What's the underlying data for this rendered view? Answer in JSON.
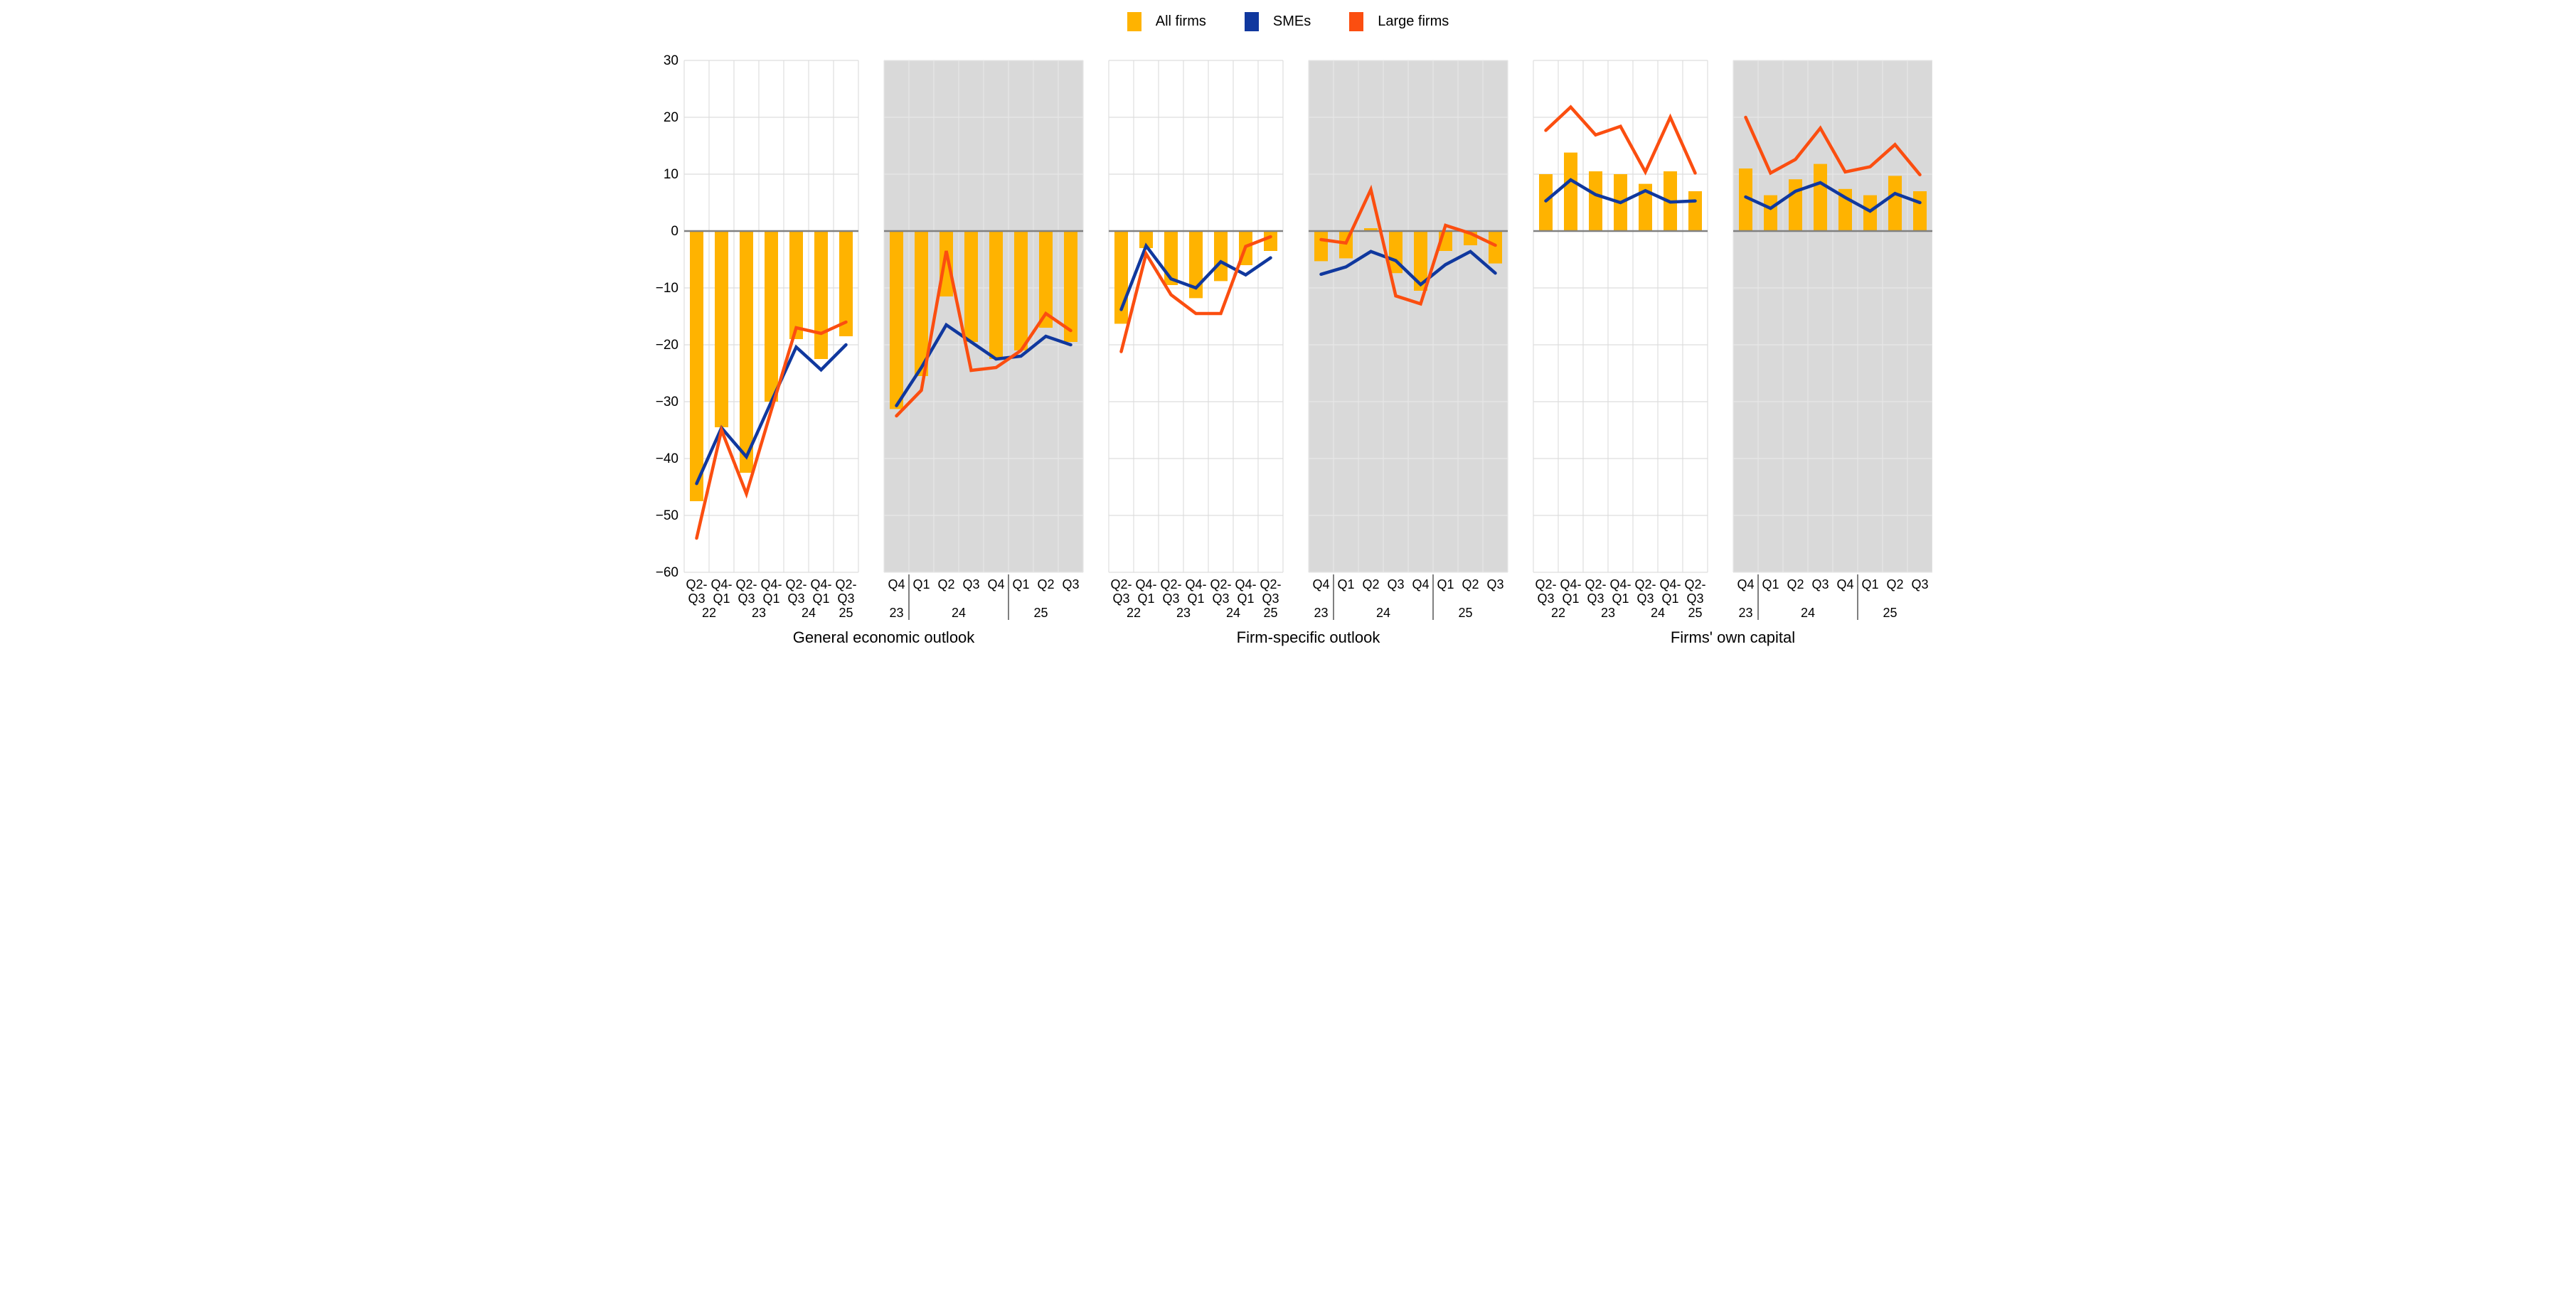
{
  "legend": [
    {
      "label": "All firms",
      "color": "#FFB300"
    },
    {
      "label": "SMEs",
      "color": "#10389E"
    },
    {
      "label": "Large firms",
      "color": "#FB4E10"
    }
  ],
  "chart_data": {
    "type": "bar+line",
    "y_axis": {
      "min": -60,
      "max": 30,
      "step": 10
    },
    "legend_position": "top-center",
    "grid": true,
    "colors": {
      "all_firms": "#FFB300",
      "smes": "#10389E",
      "large_firms": "#FB4E10",
      "gray_panel": "#D9D9D9",
      "grid_on_white": "#DEDEDE",
      "grid_on_gray": "#E7E7E7",
      "zero_line": "#808080",
      "separator": "#000000"
    },
    "groups": [
      {
        "title": "General economic outlook",
        "panels": [
          {
            "frequency": "semiannual",
            "background": "white",
            "cat_top": [
              "Q2-",
              "Q4-",
              "Q2-",
              "Q4-",
              "Q2-",
              "Q4-",
              "Q2-"
            ],
            "cat_bottom": [
              "Q3",
              "Q1",
              "Q3",
              "Q1",
              "Q3",
              "Q1",
              "Q3"
            ],
            "years": [
              {
                "label": "22",
                "slot": 1.0
              },
              {
                "label": "23",
                "slot": 3.0
              },
              {
                "label": "24",
                "slot": 5.0
              },
              {
                "label": "25",
                "slot": 6.5
              }
            ],
            "all_firms": [
              -47.5,
              -34.5,
              -42.5,
              -30,
              -19,
              -22.5,
              -18.5
            ],
            "smes": [
              -44.4,
              -34.6,
              -39.7,
              -30,
              -20.4,
              -24.4,
              -20
            ],
            "large_firms": [
              -54,
              -35,
              -46.2,
              -31.5,
              -17,
              -18,
              -16
            ]
          },
          {
            "frequency": "quarterly",
            "background": "gray",
            "cat_top": [
              "Q4",
              "Q1",
              "Q2",
              "Q3",
              "Q4",
              "Q1",
              "Q2",
              "Q3"
            ],
            "cat_bottom": null,
            "years": [
              {
                "label": "23",
                "slot": 0.5
              },
              {
                "label": "24",
                "slot": 3.0
              },
              {
                "label": "25",
                "slot": 6.3
              }
            ],
            "separators": [
              1,
              5
            ],
            "all_firms": [
              -31.3,
              -25.5,
              -11.5,
              -19.5,
              -22.5,
              -21,
              -17,
              -19.5
            ],
            "smes": [
              -30.7,
              -24,
              -16.5,
              -19.5,
              -22.5,
              -22,
              -18.5,
              -20
            ],
            "large_firms": [
              -32.5,
              -28,
              -3.5,
              -24.5,
              -24,
              -21,
              -14.5,
              -17.5
            ]
          }
        ]
      },
      {
        "title": "Firm-specific outlook",
        "panels": [
          {
            "frequency": "semiannual",
            "background": "white",
            "cat_top": [
              "Q2-",
              "Q4-",
              "Q2-",
              "Q4-",
              "Q2-",
              "Q4-",
              "Q2-"
            ],
            "cat_bottom": [
              "Q3",
              "Q1",
              "Q3",
              "Q1",
              "Q3",
              "Q1",
              "Q3"
            ],
            "years": [
              {
                "label": "22",
                "slot": 1.0
              },
              {
                "label": "23",
                "slot": 3.0
              },
              {
                "label": "24",
                "slot": 5.0
              },
              {
                "label": "25",
                "slot": 6.5
              }
            ],
            "all_firms": [
              -16.3,
              -3,
              -9.5,
              -11.8,
              -8.8,
              -6,
              -3.5
            ],
            "smes": [
              -13.8,
              -2.6,
              -8.4,
              -10,
              -5.4,
              -7.7,
              -4.7
            ],
            "large_firms": [
              -21.2,
              -4,
              -11.2,
              -14.5,
              -14.5,
              -2.7,
              -1
            ]
          },
          {
            "frequency": "quarterly",
            "background": "gray",
            "cat_top": [
              "Q4",
              "Q1",
              "Q2",
              "Q3",
              "Q4",
              "Q1",
              "Q2",
              "Q3"
            ],
            "cat_bottom": null,
            "years": [
              {
                "label": "23",
                "slot": 0.5
              },
              {
                "label": "24",
                "slot": 3.0
              },
              {
                "label": "25",
                "slot": 6.3
              }
            ],
            "separators": [
              1,
              5
            ],
            "all_firms": [
              -5.3,
              -4.8,
              0.5,
              -7.4,
              -10.5,
              -3.5,
              -2.5,
              -5.7
            ],
            "smes": [
              -7.6,
              -6.3,
              -3.6,
              -5.2,
              -9.4,
              -5.9,
              -3.6,
              -7.4
            ],
            "large_firms": [
              -1.5,
              -2.1,
              7.3,
              -11.4,
              -12.8,
              1,
              -0.4,
              -2.5
            ]
          }
        ]
      },
      {
        "title": "Firms' own capital",
        "panels": [
          {
            "frequency": "semiannual",
            "background": "white",
            "cat_top": [
              "Q2-",
              "Q4-",
              "Q2-",
              "Q4-",
              "Q2-",
              "Q4-",
              "Q2-"
            ],
            "cat_bottom": [
              "Q3",
              "Q1",
              "Q3",
              "Q1",
              "Q3",
              "Q1",
              "Q3"
            ],
            "years": [
              {
                "label": "22",
                "slot": 1.0
              },
              {
                "label": "23",
                "slot": 3.0
              },
              {
                "label": "24",
                "slot": 5.0
              },
              {
                "label": "25",
                "slot": 6.5
              }
            ],
            "all_firms": [
              10,
              13.8,
              10.5,
              10,
              8.3,
              10.5,
              7
            ],
            "smes": [
              5.3,
              9,
              6.4,
              5,
              7.1,
              5.1,
              5.3
            ],
            "large_firms": [
              17.7,
              21.8,
              16.9,
              18.4,
              10.4,
              20,
              10.2
            ]
          },
          {
            "frequency": "quarterly",
            "background": "gray",
            "cat_top": [
              "Q4",
              "Q1",
              "Q2",
              "Q3",
              "Q4",
              "Q1",
              "Q2",
              "Q3"
            ],
            "cat_bottom": null,
            "years": [
              {
                "label": "23",
                "slot": 0.5
              },
              {
                "label": "24",
                "slot": 3.0
              },
              {
                "label": "25",
                "slot": 6.3
              }
            ],
            "separators": [
              1,
              5
            ],
            "all_firms": [
              11,
              6.3,
              9.1,
              11.8,
              7.4,
              6.3,
              9.7,
              7
            ],
            "smes": [
              6,
              4,
              7,
              8.5,
              5.9,
              3.5,
              6.6,
              5
            ],
            "large_firms": [
              20,
              10.2,
              12.6,
              18.1,
              10.4,
              11.3,
              15.2,
              9.9
            ]
          }
        ]
      }
    ]
  }
}
